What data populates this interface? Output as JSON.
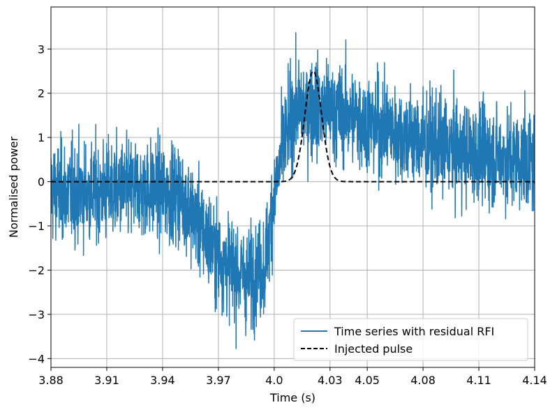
{
  "chart_data": {
    "type": "line",
    "title": "",
    "xlabel": "Time (s)",
    "ylabel": "Normalised power",
    "xlim": [
      3.88,
      4.14
    ],
    "ylim": [
      -4.2,
      3.95
    ],
    "x_ticks": [
      3.88,
      3.91,
      3.94,
      3.97,
      4.0,
      4.03,
      4.05,
      4.08,
      4.11,
      4.14
    ],
    "x_tick_labels": [
      "3.88",
      "3.91",
      "3.94",
      "3.97",
      "4.0",
      "4.03",
      "4.05",
      "4.08",
      "4.11",
      "4.14"
    ],
    "y_ticks": [
      -4,
      -3,
      -2,
      -1,
      0,
      1,
      2,
      3
    ],
    "y_tick_labels": [
      "−4",
      "−3",
      "−2",
      "−1",
      "0",
      "1",
      "2",
      "3"
    ],
    "grid": true,
    "legend_position": "lower-right",
    "series": [
      {
        "name": "Time series with residual RFI",
        "color": "#1f77b4",
        "style": "solid",
        "noise_amplitude": 0.55,
        "baseline": {
          "x": [
            3.88,
            3.9,
            3.93,
            3.95,
            3.96,
            3.97,
            3.985,
            3.995,
            4.0,
            4.005,
            4.01,
            4.02,
            4.04,
            4.06,
            4.08,
            4.1,
            4.12,
            4.14
          ],
          "y": [
            -0.2,
            -0.25,
            -0.15,
            -0.3,
            -1.0,
            -1.7,
            -2.2,
            -1.9,
            -0.3,
            0.8,
            1.6,
            1.7,
            1.5,
            1.2,
            0.9,
            0.7,
            0.55,
            0.45
          ]
        }
      },
      {
        "name": "Injected pulse",
        "color": "#000000",
        "style": "dashed",
        "pulse_center": 4.021,
        "pulse_amplitude": 2.5,
        "pulse_sigma": 0.0045,
        "baseline": 0
      }
    ]
  }
}
